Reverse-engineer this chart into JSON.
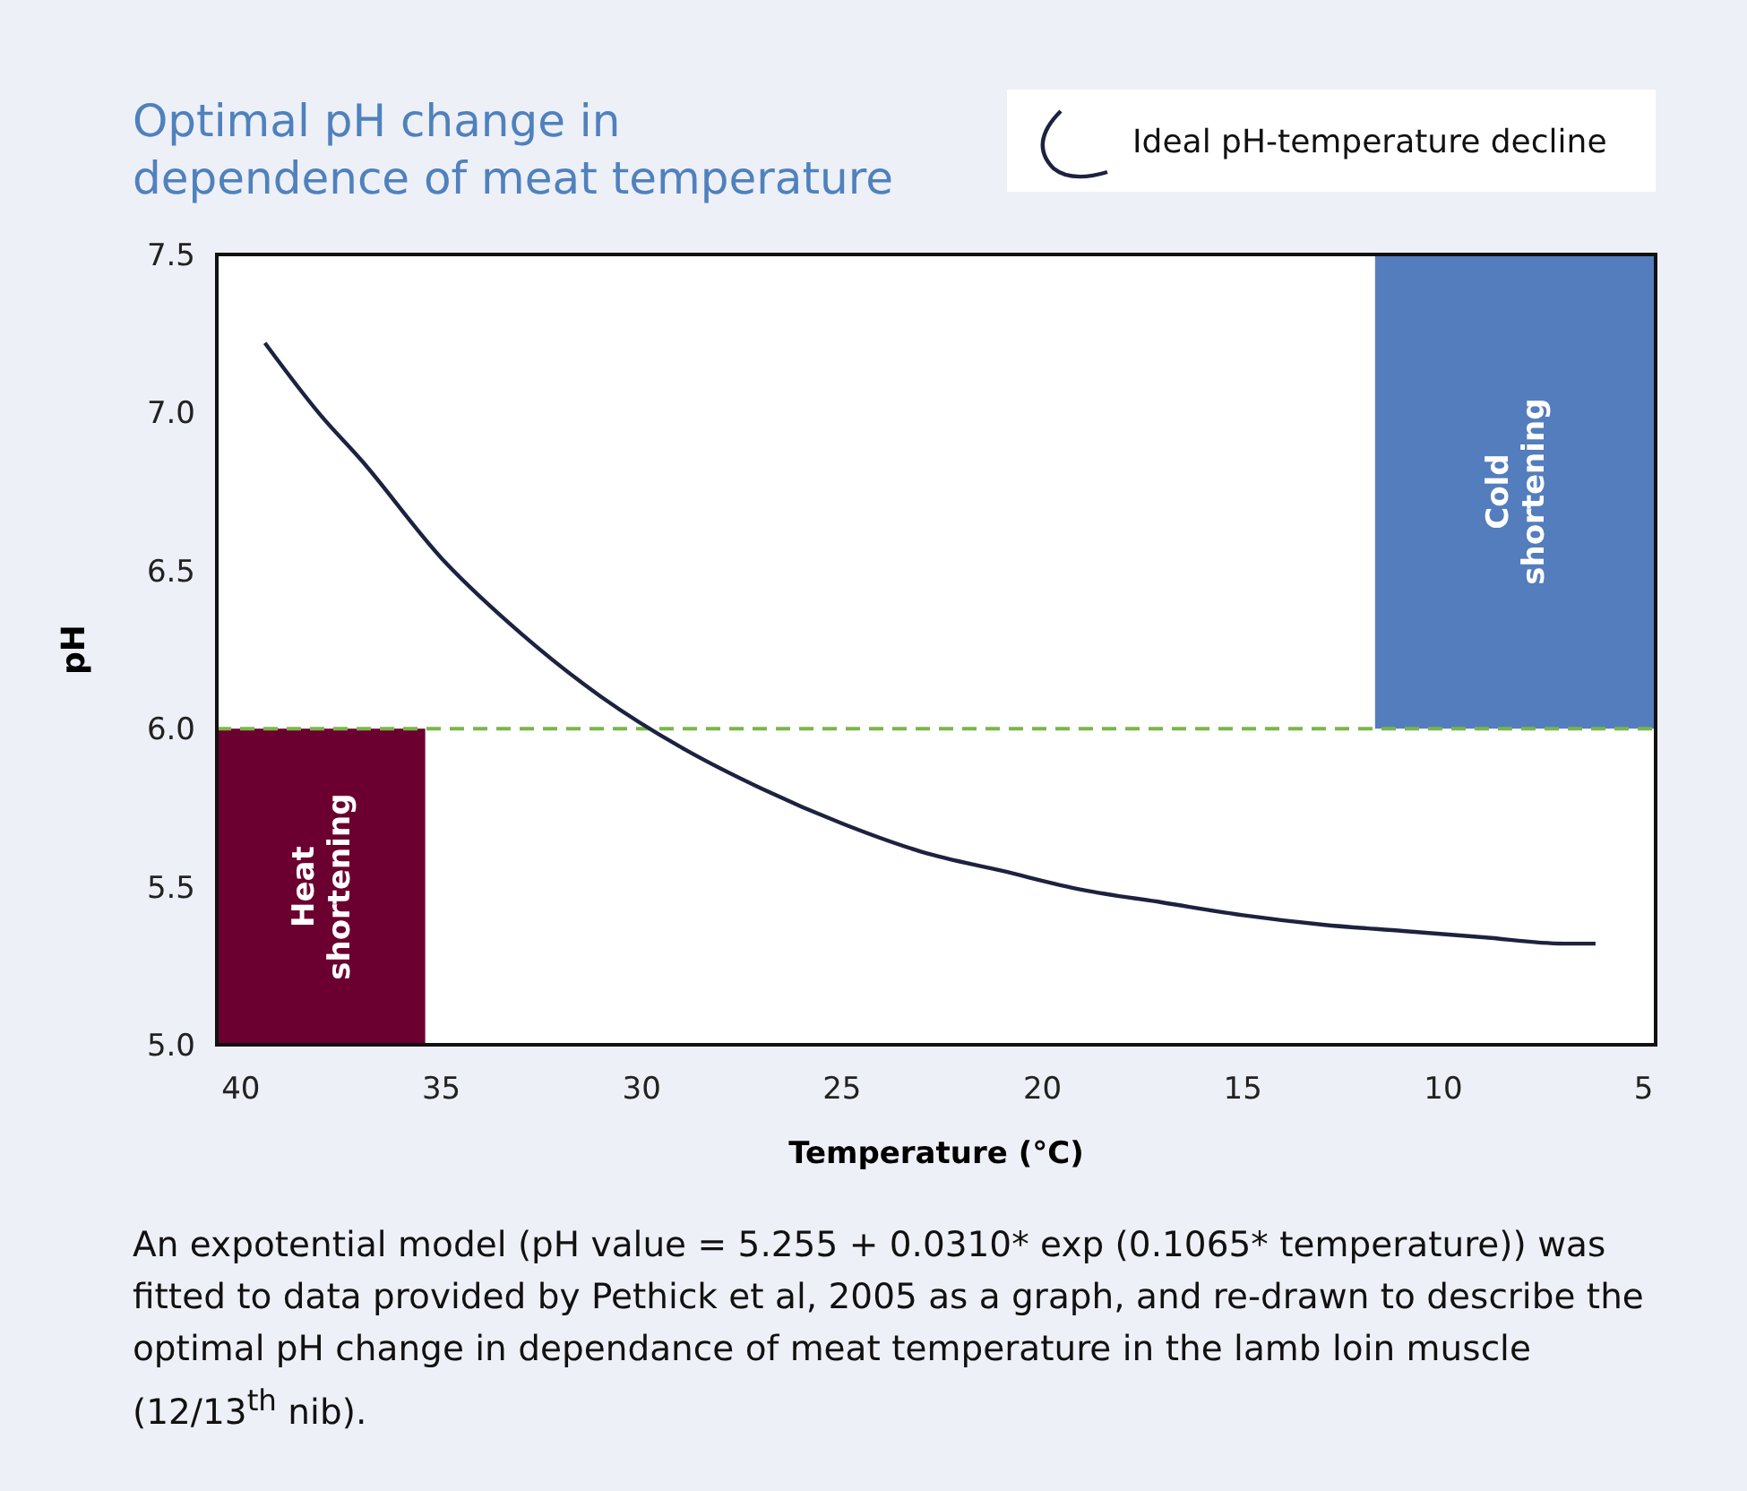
{
  "chart_data": {
    "type": "line",
    "title": "Optimal pH change in dependence of meat temperature",
    "xlabel": "Temperature (°C)",
    "ylabel": "pH",
    "x": [
      39.4,
      38,
      37,
      35,
      33,
      31,
      29,
      27,
      25,
      23,
      21,
      19,
      17,
      15,
      13,
      11,
      9,
      7,
      6.2
    ],
    "series": [
      {
        "name": "Ideal pH-temperature decline",
        "color": "#1c2340",
        "values": [
          7.22,
          6.99,
          6.85,
          6.54,
          6.3,
          6.1,
          5.94,
          5.81,
          5.7,
          5.61,
          5.55,
          5.49,
          5.45,
          5.41,
          5.38,
          5.36,
          5.34,
          5.32,
          5.32
        ]
      }
    ],
    "xlim": [
      40.6,
      4.7
    ],
    "xticks": [
      40,
      35,
      30,
      25,
      20,
      15,
      10,
      5
    ],
    "ylim": [
      5,
      7.5
    ],
    "yticks": [
      {
        "value": 5,
        "label": "5.0"
      },
      {
        "value": 5.5,
        "label": "5.5"
      },
      {
        "value": 6,
        "label": "6.0"
      },
      {
        "value": 6.5,
        "label": "6.5"
      },
      {
        "value": 7,
        "label": "7.0"
      },
      {
        "value": 7.5,
        "label": "7.5"
      }
    ],
    "ref_lines": [
      {
        "axis": "y",
        "value": 6,
        "color": "#7ab648",
        "line_style": "dashed"
      }
    ],
    "bands": [
      {
        "axis": "x",
        "from": 40.6,
        "to": 35.4,
        "label": "Heat shortening",
        "color": "#6b0030"
      },
      {
        "axis": "x",
        "from": 11.7,
        "to": 4.7,
        "label": "Cold shortening",
        "color": "#537dbd"
      }
    ],
    "legend": "top right",
    "grid": false,
    "marker": "none",
    "line_style": "solid",
    "annotations": [
      "An expotential model (pH value = 5.255 + 0.0310* exp (0.1065* temperature)) was fitted to data provided by Pethick et al, 2005 as a graph, and re-drawn to describe the optimal pH change in dependance of meat temperature in the lamb loin muscle (12/13$^{th}$ nib)."
    ]
  }
}
